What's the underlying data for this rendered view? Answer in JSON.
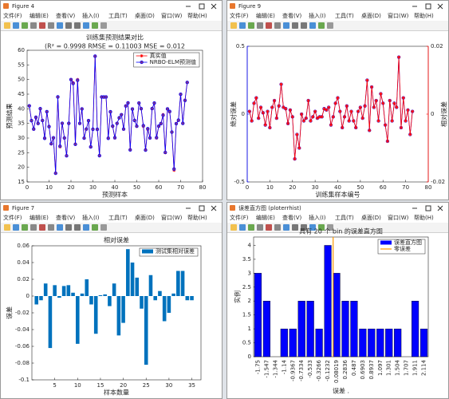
{
  "menu": [
    "文件(F)",
    "编辑(E)",
    "查看(V)",
    "插入(I)",
    "工具(T)",
    "桌面(D)",
    "窗口(W)",
    "帮助(H)"
  ],
  "windows": [
    {
      "title": "Figure 4"
    },
    {
      "title": "Figure 9"
    },
    {
      "title": "Figure 7"
    },
    {
      "title": "误差直方图 (ploterrhist)"
    }
  ],
  "chart_data": [
    {
      "type": "line",
      "title": "训练集预测结果对比",
      "subtitle": "(R² = 0.9998 RMSE = 0.11003 MSE = 0.012",
      "xlabel": "预测样本",
      "ylabel": "预测结果",
      "legend": "upper right",
      "x": [
        1,
        2,
        3,
        4,
        5,
        6,
        7,
        8,
        9,
        10,
        11,
        12,
        13,
        14,
        15,
        16,
        17,
        18,
        19,
        20,
        21,
        22,
        23,
        24,
        25,
        26,
        27,
        28,
        29,
        30,
        31,
        32,
        33,
        34,
        35,
        36,
        37,
        38,
        39,
        40,
        41,
        42,
        43,
        44,
        45,
        46,
        47,
        48,
        49,
        50,
        51,
        52,
        53,
        54,
        55,
        56,
        57,
        58,
        59,
        60,
        61,
        62,
        63,
        64,
        65,
        66,
        67,
        68,
        69,
        70,
        71,
        72,
        73
      ],
      "series": [
        {
          "name": "真实值",
          "color": "#ff0000",
          "marker": "star",
          "values": [
            41,
            36,
            33,
            37,
            35,
            40,
            36,
            30,
            39,
            34,
            28,
            30,
            18,
            44,
            27,
            35,
            30,
            24,
            35,
            50,
            49,
            28,
            50,
            35,
            40,
            30,
            33,
            36,
            27,
            33,
            58,
            33,
            24,
            44,
            44,
            44,
            30,
            39,
            34,
            30,
            35,
            37,
            38,
            33,
            41,
            42,
            26,
            40,
            36,
            34,
            42,
            40,
            34,
            26,
            33,
            30,
            40,
            42,
            30,
            34,
            35,
            38,
            25,
            40,
            39,
            32,
            19,
            35,
            36,
            45,
            35,
            43,
            49
          ]
        },
        {
          "name": "NRBO-ELM预测值",
          "color": "#0000ff",
          "marker": "circle",
          "marker_fill": "#7e2f8e",
          "values": [
            41.02,
            35.95,
            33.08,
            37.12,
            34.97,
            40.05,
            36.01,
            29.92,
            39.02,
            33.9,
            28.05,
            30.1,
            17.97,
            44.06,
            27.22,
            35.05,
            30.04,
            23.93,
            35.03,
            49.98,
            48.67,
            27.85,
            49.75,
            35,
            39.95,
            29.97,
            33.1,
            35.95,
            26.98,
            33.02,
            57.97,
            32.98,
            23.98,
            44.04,
            44.03,
            44.05,
            29.92,
            38.98,
            34.08,
            30.12,
            35.02,
            36.9,
            37.98,
            33.06,
            40.95,
            42.02,
            25.95,
            39.9,
            36.02,
            34.05,
            41.97,
            40.06,
            34.25,
            25.88,
            33.2,
            30.05,
            40.1,
            41.95,
            30.15,
            34.08,
            34.92,
            37.8,
            25.1,
            39.95,
            39.08,
            32.05,
            19.42,
            34.9,
            36.12,
            44.95,
            35.03,
            42.85,
            49.02
          ]
        }
      ],
      "xlim": [
        0,
        80
      ],
      "xticks": [
        0,
        10,
        20,
        30,
        40,
        50,
        60,
        70,
        80
      ],
      "ylim": [
        15,
        60
      ],
      "yticks": [
        15,
        20,
        25,
        30,
        35,
        40,
        45,
        50,
        55,
        60
      ]
    },
    {
      "type": "line",
      "xlabel": "训练集样本编号",
      "ylabel": "绝对误差",
      "y2label": "相对误差",
      "x": [
        1,
        2,
        3,
        4,
        5,
        6,
        7,
        8,
        9,
        10,
        11,
        12,
        13,
        14,
        15,
        16,
        17,
        18,
        19,
        20,
        21,
        22,
        23,
        24,
        25,
        26,
        27,
        28,
        29,
        30,
        31,
        32,
        33,
        34,
        35,
        36,
        37,
        38,
        39,
        40,
        41,
        42,
        43,
        44,
        45,
        46,
        47,
        48,
        49,
        50,
        51,
        52,
        53,
        54,
        55,
        56,
        57,
        58,
        59,
        60,
        61,
        62,
        63,
        64,
        65,
        66,
        67,
        68,
        69,
        70,
        71,
        72,
        73
      ],
      "series": [
        {
          "color": "#0000ff",
          "marker": "circle",
          "values": [
            0.02,
            -0.05,
            0.08,
            0.12,
            -0.03,
            0.05,
            0.01,
            -0.08,
            0.02,
            -0.1,
            0.05,
            0.1,
            -0.03,
            0.06,
            0.22,
            0.05,
            0.04,
            -0.07,
            0.03,
            -0.02,
            -0.33,
            -0.15,
            -0.25,
            0,
            -0.05,
            -0.03,
            0.1,
            -0.05,
            -0.02,
            0.02,
            -0.03,
            -0.02,
            -0.02,
            0.04,
            0.03,
            0.05,
            -0.08,
            -0.02,
            0.08,
            0.12,
            0.02,
            -0.1,
            -0.02,
            0.06,
            -0.05,
            0.02,
            -0.05,
            -0.1,
            0.02,
            0.05,
            -0.03,
            0.06,
            0.25,
            -0.12,
            0.2,
            0.05,
            0.1,
            -0.05,
            0.15,
            0.08,
            -0.08,
            -0.2,
            0.1,
            -0.05,
            0.08,
            0.05,
            0.42,
            -0.1,
            0.12,
            -0.05,
            0.03,
            -0.15,
            0.02
          ]
        },
        {
          "color": "#ff0000",
          "marker": "star",
          "axis": "y2",
          "values": [
            0.0008,
            -0.002,
            0.0032,
            0.0048,
            -0.0012,
            0.002,
            0.0004,
            -0.0032,
            0.0008,
            -0.004,
            0.002,
            0.004,
            -0.0012,
            0.0024,
            0.0088,
            0.002,
            0.0016,
            -0.0028,
            0.0012,
            -0.0008,
            -0.0132,
            -0.006,
            -0.01,
            0,
            -0.002,
            -0.0012,
            0.004,
            -0.002,
            -0.0008,
            0.0008,
            -0.0012,
            -0.0008,
            -0.0008,
            0.0016,
            0.0012,
            0.002,
            -0.0032,
            -0.0008,
            0.0032,
            0.0048,
            0.0008,
            -0.004,
            -0.0008,
            0.0024,
            -0.002,
            0.0008,
            -0.002,
            -0.004,
            0.0008,
            0.002,
            -0.0012,
            0.0024,
            0.01,
            -0.0048,
            0.008,
            0.002,
            0.004,
            -0.002,
            0.006,
            0.0032,
            -0.0032,
            -0.008,
            0.004,
            -0.002,
            0.0032,
            0.002,
            0.0168,
            -0.004,
            0.0048,
            -0.002,
            0.0012,
            -0.006,
            0.0008
          ]
        }
      ],
      "xlim": [
        0,
        80
      ],
      "xticks": [
        0,
        10,
        20,
        30,
        40,
        50,
        60,
        70,
        80
      ],
      "ylim": [
        -0.5,
        0.5
      ],
      "yticks": [
        -0.5,
        0,
        0.5
      ],
      "y2lim": [
        -0.02,
        0.02
      ],
      "y2ticks": [
        -0.02,
        0,
        0.02
      ]
    },
    {
      "type": "bar",
      "title": "相对误差",
      "xlabel": "样本数量",
      "ylabel": "误差",
      "legend": "upper right",
      "x": [
        1,
        2,
        3,
        4,
        5,
        6,
        7,
        8,
        9,
        10,
        11,
        12,
        13,
        14,
        15,
        16,
        17,
        18,
        19,
        20,
        21,
        22,
        23,
        24,
        25,
        26,
        27,
        28,
        29,
        30,
        31,
        32,
        33,
        34,
        35
      ],
      "series": [
        {
          "name": "测试集相对误差",
          "color": "#0072bd",
          "values": [
            -0.01,
            -0.005,
            0.015,
            -0.062,
            0.013,
            -0.002,
            0.012,
            0.013,
            0.004,
            -0.057,
            0.003,
            0.02,
            -0.01,
            -0.045,
            0.001,
            0.002,
            -0.012,
            0.015,
            -0.047,
            -0.032,
            0.056,
            0.04,
            0.022,
            -0.015,
            -0.082,
            0.025,
            -0.005,
            0.006,
            -0.03,
            -0.02,
            0.003,
            0.03,
            0.03,
            -0.005,
            -0.005
          ]
        }
      ],
      "xlim": [
        0,
        37
      ],
      "xticks": [
        5,
        10,
        15,
        20,
        25,
        30,
        35
      ],
      "ylim": [
        -0.1,
        0.06
      ],
      "yticks": [
        -0.1,
        -0.08,
        -0.06,
        -0.04,
        -0.02,
        0,
        0.02,
        0.04,
        0.06
      ]
    },
    {
      "type": "bar",
      "title": "具有 20 个 bin 的误差直方图",
      "xlabel": "误差 .",
      "ylabel": "实例",
      "legend": "upper right",
      "categories": [
        "-1.75",
        "-1.547",
        "-1.344",
        "-1.14",
        "-0.9367",
        "-0.7334",
        "-0.533",
        "-0.3266",
        "-0.1232",
        "0.08019",
        "0.2836",
        "0.487",
        "0.6903",
        "0.8937",
        "1.097",
        "1.301",
        "1.504",
        "1.707",
        "1.911",
        "2.114"
      ],
      "series": [
        {
          "name": "误差直方图",
          "color": "#0000ff",
          "values": [
            3,
            2,
            0,
            1,
            1,
            2,
            2,
            1,
            4,
            3,
            2,
            2,
            1,
            1,
            1,
            1,
            1,
            0,
            2,
            1
          ]
        }
      ],
      "reference_line": {
        "name": "零误差",
        "color": "#ff9900",
        "x": 0
      },
      "ylim": [
        0,
        4.3
      ],
      "yticks": [
        0,
        0.5,
        1,
        1.5,
        2,
        2.5,
        3,
        3.5,
        4
      ]
    }
  ]
}
